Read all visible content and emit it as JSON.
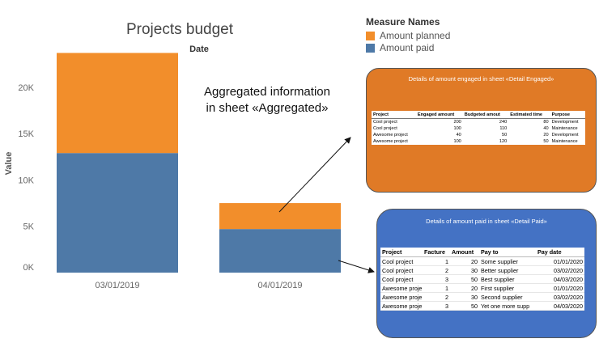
{
  "chart_data": {
    "type": "bar",
    "stacked": true,
    "title": "Projects budget",
    "column_header": "Date",
    "ylabel": "Value",
    "xlabel": "",
    "categories": [
      "03/01/2019",
      "04/01/2019"
    ],
    "series": [
      {
        "name": "Amount paid",
        "values": [
          12900,
          4700
        ],
        "color": "#4e79a7"
      },
      {
        "name": "Amount planned",
        "values": [
          10800,
          2800
        ],
        "color": "#f28e2b"
      }
    ],
    "ylim": [
      0,
      24000
    ],
    "yticks": [
      0,
      5000,
      10000,
      15000,
      20000
    ],
    "ytick_labels": [
      "0K",
      "5K",
      "10K",
      "15K",
      "20K"
    ],
    "grid": false,
    "legend_position": "top-right"
  },
  "legend": {
    "title": "Measure Names",
    "items": [
      {
        "label": "Amount planned",
        "color": "#f28e2b"
      },
      {
        "label": "Amount paid",
        "color": "#4e79a7"
      }
    ]
  },
  "annotation": {
    "line1": "Aggregated information",
    "line2": "in sheet «Aggregated»"
  },
  "detail_engaged": {
    "title": "Details of amount engaged in sheet «Detail Engaged»",
    "color": "#e07a26",
    "headers": [
      "Project",
      "Engaged amount",
      "Budgeted amout",
      "Estimated time",
      "Purpose"
    ],
    "rows": [
      [
        "Cool project",
        "200",
        "240",
        "80",
        "Development"
      ],
      [
        "Cool project",
        "100",
        "110",
        "40",
        "Maintenance"
      ],
      [
        "Awesome project",
        "40",
        "50",
        "20",
        "Development"
      ],
      [
        "Awesome project",
        "100",
        "120",
        "50",
        "Maintenance"
      ]
    ]
  },
  "detail_paid": {
    "title": "Details of amount paid in sheet «Detail Paid»",
    "color": "#4472c4",
    "headers": [
      "Project",
      "Facture",
      "Amount",
      "Pay to",
      "Pay date"
    ],
    "rows": [
      [
        "Cool project",
        "1",
        "20",
        "Some supplier",
        "01/01/2020"
      ],
      [
        "Cool project",
        "2",
        "30",
        "Better supplier",
        "03/02/2020"
      ],
      [
        "Cool project",
        "3",
        "50",
        "Best supplier",
        "04/03/2020"
      ],
      [
        "Awesome proje",
        "1",
        "20",
        "First supplier",
        "01/01/2020"
      ],
      [
        "Awesome proje",
        "2",
        "30",
        "Second supplier",
        "03/02/2020"
      ],
      [
        "Awesome proje",
        "3",
        "50",
        "Yet one more supp",
        "04/03/2020"
      ]
    ]
  }
}
